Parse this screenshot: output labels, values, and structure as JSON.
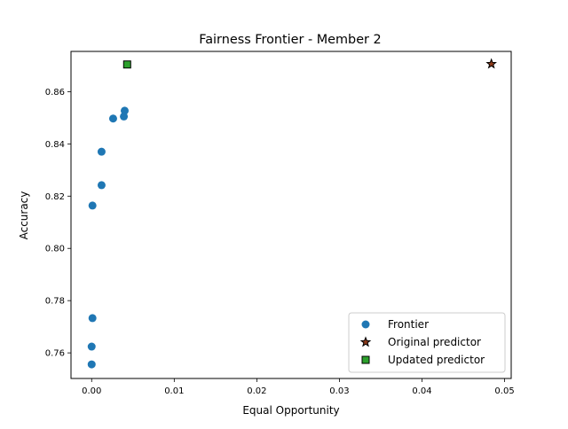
{
  "chart_data": {
    "type": "scatter",
    "title": "Fairness Frontier - Member 2",
    "xlabel": "Equal Opportunity",
    "ylabel": "Accuracy",
    "xlim": [
      -0.0025,
      0.0508
    ],
    "ylim": [
      0.7502,
      0.8754
    ],
    "xticks": [
      0.0,
      0.01,
      0.02,
      0.03,
      0.04,
      0.05
    ],
    "xtick_labels": [
      "0.00",
      "0.01",
      "0.02",
      "0.03",
      "0.04",
      "0.05"
    ],
    "yticks": [
      0.76,
      0.78,
      0.8,
      0.82,
      0.84,
      0.86
    ],
    "ytick_labels": [
      "0.76",
      "0.78",
      "0.80",
      "0.82",
      "0.84",
      "0.86"
    ],
    "grid": false,
    "legend_position": "lower-right",
    "series": [
      {
        "name": "Frontier",
        "marker": "circle",
        "color": "#1f77b4",
        "points": [
          {
            "x": 0.0,
            "y": 0.7556
          },
          {
            "x": 0.0,
            "y": 0.7624
          },
          {
            "x": 0.0001,
            "y": 0.7733
          },
          {
            "x": 0.0001,
            "y": 0.8164
          },
          {
            "x": 0.0012,
            "y": 0.8242
          },
          {
            "x": 0.0012,
            "y": 0.837
          },
          {
            "x": 0.0026,
            "y": 0.8497
          },
          {
            "x": 0.0039,
            "y": 0.8505
          },
          {
            "x": 0.004,
            "y": 0.8527
          }
        ]
      },
      {
        "name": "Original predictor",
        "marker": "star",
        "color": "#8c3a1a",
        "points": [
          {
            "x": 0.0484,
            "y": 0.8706
          }
        ]
      },
      {
        "name": "Updated predictor",
        "marker": "square",
        "color": "#2ca02c",
        "points": [
          {
            "x": 0.0043,
            "y": 0.8704
          }
        ]
      }
    ]
  }
}
